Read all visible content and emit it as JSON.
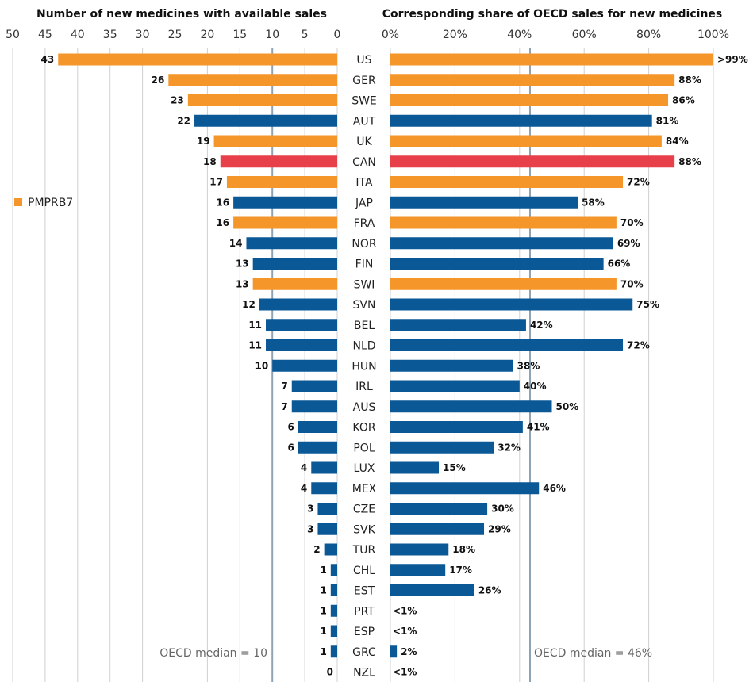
{
  "chart_data": [
    {
      "id": "left",
      "type": "bar",
      "orientation": "horizontal-reversed",
      "title": "Number of new medicines with available sales",
      "xlim": [
        0,
        50
      ],
      "ticks": [
        50,
        45,
        40,
        35,
        30,
        25,
        20,
        15,
        10,
        5,
        0
      ],
      "grid": true,
      "median": {
        "value": 10,
        "label": "OECD median = 10"
      },
      "categories": [
        "US",
        "GER",
        "SWE",
        "AUT",
        "UK",
        "CAN",
        "ITA",
        "JAP",
        "FRA",
        "NOR",
        "FIN",
        "SWI",
        "SVN",
        "BEL",
        "NLD",
        "HUN",
        "IRL",
        "AUS",
        "KOR",
        "POL",
        "LUX",
        "MEX",
        "CZE",
        "SVK",
        "TUR",
        "CHL",
        "EST",
        "PRT",
        "ESP",
        "GRC",
        "NZL"
      ],
      "values": [
        43,
        26,
        23,
        22,
        19,
        18,
        17,
        16,
        16,
        14,
        13,
        13,
        12,
        11,
        11,
        10,
        7,
        7,
        6,
        6,
        4,
        4,
        3,
        3,
        2,
        1,
        1,
        1,
        1,
        1,
        0
      ],
      "labels": [
        "43",
        "26",
        "23",
        "22",
        "19",
        "18",
        "17",
        "16",
        "16",
        "14",
        "13",
        "13",
        "12",
        "11",
        "11",
        "10",
        "7",
        "7",
        "6",
        "6",
        "4",
        "4",
        "3",
        "3",
        "2",
        "1",
        "1",
        "1",
        "1",
        "1",
        "0"
      ]
    },
    {
      "id": "right",
      "type": "bar",
      "orientation": "horizontal",
      "title": "Corresponding share of OECD sales for new medicines",
      "xlim": [
        0,
        100
      ],
      "ticks": [
        0,
        20,
        40,
        60,
        80,
        100
      ],
      "tick_labels": [
        "0%",
        "20%",
        "40%",
        "60%",
        "80%",
        "100%"
      ],
      "grid": true,
      "median": {
        "value": 46,
        "label": "OECD median = 46%"
      },
      "categories": [
        "US",
        "GER",
        "SWE",
        "AUT",
        "UK",
        "CAN",
        "ITA",
        "JAP",
        "FRA",
        "NOR",
        "FIN",
        "SWI",
        "SVN",
        "BEL",
        "NLD",
        "HUN",
        "IRL",
        "AUS",
        "KOR",
        "POL",
        "LUX",
        "MEX",
        "CZE",
        "SVK",
        "TUR",
        "CHL",
        "EST",
        "PRT",
        "ESP",
        "GRC",
        "NZL"
      ],
      "values": [
        100,
        88,
        86,
        81,
        84,
        88,
        72,
        58,
        70,
        69,
        66,
        70,
        75,
        42,
        72,
        38,
        40,
        50,
        41,
        32,
        15,
        46,
        30,
        29,
        18,
        17,
        26,
        0.5,
        0.5,
        2,
        0.5
      ],
      "labels": [
        ">99%",
        "88%",
        "86%",
        "81%",
        "84%",
        "88%",
        "72%",
        "58%",
        "70%",
        "69%",
        "66%",
        "70%",
        "75%",
        "42%",
        "72%",
        "38%",
        "40%",
        "50%",
        "41%",
        "32%",
        "15%",
        "46%",
        "30%",
        "29%",
        "18%",
        "17%",
        "26%",
        "<1%",
        "<1%",
        "2%",
        "<1%"
      ]
    }
  ],
  "groups": [
    "pmprb7",
    "pmprb7",
    "pmprb7",
    "other",
    "pmprb7",
    "canada",
    "pmprb7",
    "other",
    "pmprb7",
    "other",
    "other",
    "pmprb7",
    "other",
    "other",
    "other",
    "other",
    "other",
    "other",
    "other",
    "other",
    "other",
    "other",
    "other",
    "other",
    "other",
    "other",
    "other",
    "other",
    "other",
    "other",
    "other"
  ],
  "colors": {
    "pmprb7": "#f5962a",
    "canada": "#e8404a",
    "other": "#0a5896",
    "grid": "#d0d0d0",
    "median": "#8fa3b3"
  },
  "legend": [
    {
      "label": "PMPRB7",
      "group": "pmprb7"
    }
  ]
}
